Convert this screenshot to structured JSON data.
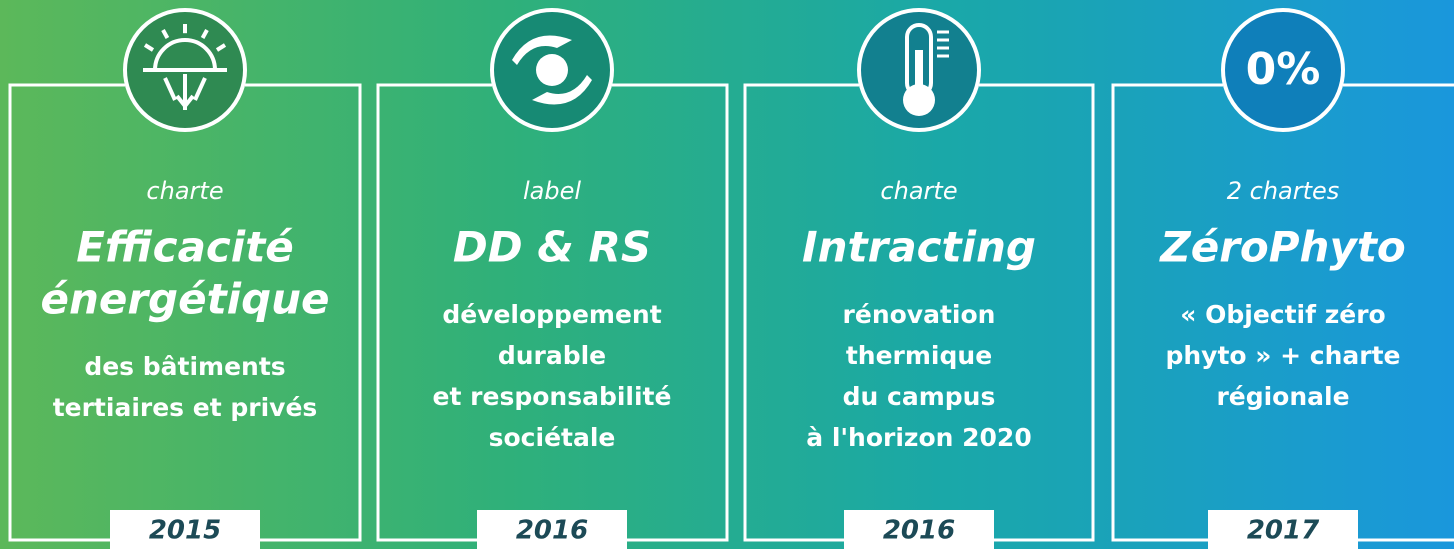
{
  "cards": [
    {
      "kicker": "charte",
      "title_lines": [
        "Efficacité",
        "énergétique"
      ],
      "description_lines": [
        "des bâtiments",
        "tertiaires et privés"
      ],
      "year": "2015"
    },
    {
      "kicker": "label",
      "title_lines": [
        "DD & RS"
      ],
      "description_lines": [
        "développement",
        "durable",
        "et responsabilité",
        "sociétale"
      ],
      "year": "2016"
    },
    {
      "kicker": "charte",
      "title_lines": [
        "Intracting"
      ],
      "description_lines": [
        "rénovation",
        "thermique",
        "du campus",
        "à l'horizon 2020"
      ],
      "year": "2016"
    },
    {
      "kicker": "2 chartes",
      "title_lines": [
        "ZéroPhyto"
      ],
      "description_lines": [
        "« Objectif zéro",
        "phyto » + charte",
        "régionale"
      ],
      "year": "2017",
      "icon_text": "0%"
    }
  ]
}
